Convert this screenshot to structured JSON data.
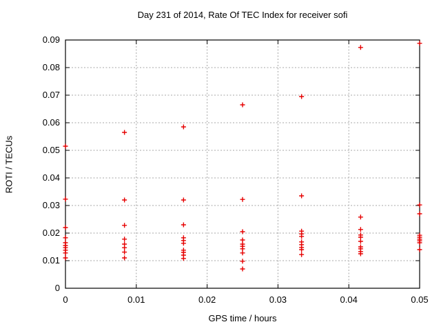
{
  "chart_data": {
    "type": "scatter",
    "title": "Day 231 of 2014, Rate Of TEC Index for receiver sofi",
    "xlabel": "GPS time / hours",
    "ylabel": "ROTI / TECUs",
    "xlim": [
      0,
      0.05
    ],
    "ylim": [
      0,
      0.09
    ],
    "xticks": [
      0,
      0.01,
      0.02,
      0.03,
      0.04,
      0.05
    ],
    "xtick_labels": [
      "0",
      "0.01",
      "0.02",
      "0.03",
      "0.04",
      "0.05"
    ],
    "yticks": [
      0,
      0.01,
      0.02,
      0.03,
      0.04,
      0.05,
      0.06,
      0.07,
      0.08,
      0.09
    ],
    "ytick_labels": [
      "0",
      "0.01",
      "0.02",
      "0.03",
      "0.04",
      "0.05",
      "0.06",
      "0.07",
      "0.08",
      "0.09"
    ],
    "grid": true,
    "legend": "none",
    "marker": "plus",
    "series": [
      {
        "name": "ROTI",
        "columns": [
          {
            "x": 0.0,
            "y": [
              0.0515,
              0.0323,
              0.022,
              0.0183,
              0.0165,
              0.0155,
              0.0147,
              0.0138,
              0.0128,
              0.011
            ]
          },
          {
            "x": 0.00833,
            "y": [
              0.0565,
              0.032,
              0.0228,
              0.0178,
              0.016,
              0.0147,
              0.0131,
              0.011
            ]
          },
          {
            "x": 0.01667,
            "y": [
              0.0585,
              0.032,
              0.023,
              0.0183,
              0.0173,
              0.0163,
              0.0138,
              0.013,
              0.012,
              0.0108
            ]
          },
          {
            "x": 0.025,
            "y": [
              0.0665,
              0.0322,
              0.0205,
              0.0175,
              0.016,
              0.0152,
              0.0143,
              0.0128,
              0.0098,
              0.007
            ]
          },
          {
            "x": 0.03333,
            "y": [
              0.0695,
              0.0335,
              0.0207,
              0.0197,
              0.0188,
              0.0168,
              0.0158,
              0.0148,
              0.014,
              0.0122
            ]
          },
          {
            "x": 0.04167,
            "y": [
              0.0873,
              0.0258,
              0.0213,
              0.0193,
              0.0185,
              0.017,
              0.015,
              0.0143,
              0.0133,
              0.0125
            ]
          },
          {
            "x": 0.05,
            "y": [
              0.0888,
              0.0302,
              0.027,
              0.0192,
              0.0185,
              0.0178,
              0.0172,
              0.0165,
              0.014
            ]
          }
        ]
      }
    ]
  },
  "colors": {
    "marker": "#e60000",
    "grid": "#a6a6a6",
    "axis": "#000000",
    "background": "#ffffff",
    "text": "#000000"
  }
}
